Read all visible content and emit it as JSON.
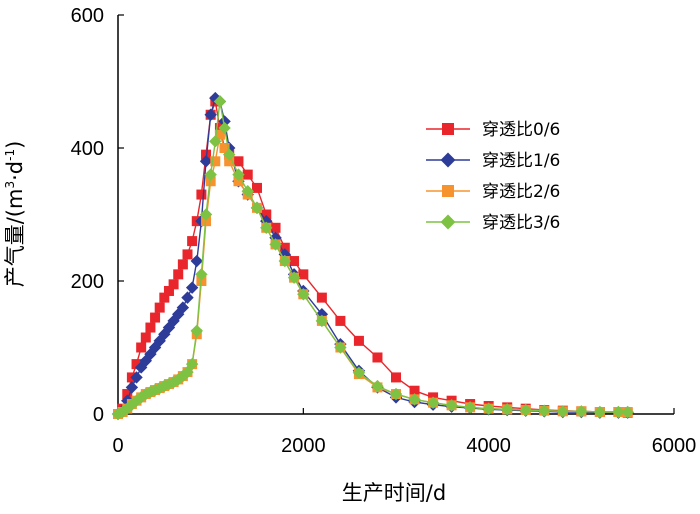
{
  "chart_data": {
    "type": "line",
    "title": "",
    "xlabel": "生产时间/d",
    "ylabel_prefix": "产气量/(m",
    "ylabel_sup1": "3",
    "ylabel_mid": "·d",
    "ylabel_sup2": "-1",
    "ylabel_suffix": ")",
    "xlim": [
      0,
      6000
    ],
    "ylim": [
      0,
      600
    ],
    "xticks": [
      "0",
      "2000",
      "4000",
      "6000"
    ],
    "yticks": [
      "0",
      "200",
      "400",
      "600"
    ],
    "legend_position": "right-middle",
    "series": [
      {
        "name": "穿透比0/6",
        "color": "#e8262b",
        "marker": "square",
        "points": [
          [
            0,
            0
          ],
          [
            50,
            8
          ],
          [
            100,
            30
          ],
          [
            150,
            55
          ],
          [
            200,
            75
          ],
          [
            250,
            100
          ],
          [
            300,
            115
          ],
          [
            350,
            130
          ],
          [
            400,
            145
          ],
          [
            450,
            160
          ],
          [
            500,
            175
          ],
          [
            550,
            185
          ],
          [
            600,
            195
          ],
          [
            650,
            210
          ],
          [
            700,
            225
          ],
          [
            750,
            240
          ],
          [
            800,
            260
          ],
          [
            850,
            290
          ],
          [
            900,
            330
          ],
          [
            950,
            390
          ],
          [
            1000,
            450
          ],
          [
            1050,
            470
          ],
          [
            1100,
            430
          ],
          [
            1150,
            400
          ],
          [
            1200,
            390
          ],
          [
            1300,
            380
          ],
          [
            1400,
            360
          ],
          [
            1500,
            340
          ],
          [
            1600,
            300
          ],
          [
            1700,
            280
          ],
          [
            1800,
            250
          ],
          [
            1900,
            230
          ],
          [
            2000,
            210
          ],
          [
            2200,
            175
          ],
          [
            2400,
            140
          ],
          [
            2600,
            110
          ],
          [
            2800,
            85
          ],
          [
            3000,
            55
          ],
          [
            3200,
            35
          ],
          [
            3400,
            25
          ],
          [
            3600,
            20
          ],
          [
            3800,
            15
          ],
          [
            4000,
            12
          ],
          [
            4200,
            10
          ],
          [
            4400,
            8
          ],
          [
            4600,
            6
          ],
          [
            4800,
            5
          ],
          [
            5000,
            4
          ],
          [
            5200,
            3
          ],
          [
            5400,
            3
          ],
          [
            5500,
            2
          ]
        ]
      },
      {
        "name": "穿透比1/6",
        "color": "#2e3c99",
        "marker": "diamond",
        "points": [
          [
            0,
            0
          ],
          [
            50,
            5
          ],
          [
            100,
            20
          ],
          [
            150,
            40
          ],
          [
            200,
            55
          ],
          [
            250,
            70
          ],
          [
            300,
            80
          ],
          [
            350,
            90
          ],
          [
            400,
            100
          ],
          [
            450,
            110
          ],
          [
            500,
            120
          ],
          [
            550,
            130
          ],
          [
            600,
            140
          ],
          [
            650,
            150
          ],
          [
            700,
            160
          ],
          [
            750,
            175
          ],
          [
            800,
            190
          ],
          [
            850,
            230
          ],
          [
            900,
            290
          ],
          [
            950,
            380
          ],
          [
            1000,
            450
          ],
          [
            1050,
            475
          ],
          [
            1100,
            470
          ],
          [
            1150,
            440
          ],
          [
            1200,
            400
          ],
          [
            1300,
            350
          ],
          [
            1400,
            330
          ],
          [
            1500,
            310
          ],
          [
            1600,
            290
          ],
          [
            1700,
            265
          ],
          [
            1800,
            240
          ],
          [
            1900,
            210
          ],
          [
            2000,
            185
          ],
          [
            2200,
            150
          ],
          [
            2400,
            105
          ],
          [
            2600,
            65
          ],
          [
            2800,
            40
          ],
          [
            3000,
            25
          ],
          [
            3200,
            18
          ],
          [
            3400,
            14
          ],
          [
            3600,
            11
          ],
          [
            3800,
            9
          ],
          [
            4000,
            7
          ],
          [
            4200,
            6
          ],
          [
            4400,
            5
          ],
          [
            4600,
            4
          ],
          [
            4800,
            3
          ],
          [
            5000,
            3
          ],
          [
            5200,
            2
          ],
          [
            5400,
            2
          ],
          [
            5500,
            2
          ]
        ]
      },
      {
        "name": "穿透比2/6",
        "color": "#f7932f",
        "marker": "square",
        "points": [
          [
            0,
            0
          ],
          [
            50,
            3
          ],
          [
            100,
            8
          ],
          [
            150,
            15
          ],
          [
            200,
            20
          ],
          [
            250,
            25
          ],
          [
            300,
            30
          ],
          [
            350,
            33
          ],
          [
            400,
            36
          ],
          [
            450,
            39
          ],
          [
            500,
            42
          ],
          [
            550,
            45
          ],
          [
            600,
            48
          ],
          [
            650,
            52
          ],
          [
            700,
            57
          ],
          [
            750,
            63
          ],
          [
            800,
            75
          ],
          [
            850,
            120
          ],
          [
            900,
            200
          ],
          [
            950,
            290
          ],
          [
            1000,
            350
          ],
          [
            1050,
            380
          ],
          [
            1100,
            420
          ],
          [
            1150,
            400
          ],
          [
            1200,
            380
          ],
          [
            1300,
            350
          ],
          [
            1400,
            330
          ],
          [
            1500,
            310
          ],
          [
            1600,
            280
          ],
          [
            1700,
            255
          ],
          [
            1800,
            230
          ],
          [
            1900,
            205
          ],
          [
            2000,
            180
          ],
          [
            2200,
            140
          ],
          [
            2400,
            100
          ],
          [
            2600,
            60
          ],
          [
            2800,
            40
          ],
          [
            3000,
            30
          ],
          [
            3200,
            22
          ],
          [
            3400,
            17
          ],
          [
            3600,
            13
          ],
          [
            3800,
            10
          ],
          [
            4000,
            8
          ],
          [
            4200,
            7
          ],
          [
            4400,
            6
          ],
          [
            4600,
            5
          ],
          [
            4800,
            4
          ],
          [
            5000,
            4
          ],
          [
            5200,
            3
          ],
          [
            5400,
            3
          ],
          [
            5500,
            3
          ]
        ]
      },
      {
        "name": "穿透比3/6",
        "color": "#7dc242",
        "marker": "diamond",
        "points": [
          [
            0,
            0
          ],
          [
            50,
            3
          ],
          [
            100,
            8
          ],
          [
            150,
            14
          ],
          [
            200,
            20
          ],
          [
            250,
            25
          ],
          [
            300,
            30
          ],
          [
            350,
            33
          ],
          [
            400,
            36
          ],
          [
            450,
            39
          ],
          [
            500,
            42
          ],
          [
            550,
            45
          ],
          [
            600,
            48
          ],
          [
            650,
            52
          ],
          [
            700,
            57
          ],
          [
            750,
            63
          ],
          [
            800,
            75
          ],
          [
            850,
            125
          ],
          [
            900,
            210
          ],
          [
            950,
            300
          ],
          [
            1000,
            360
          ],
          [
            1050,
            410
          ],
          [
            1100,
            470
          ],
          [
            1150,
            430
          ],
          [
            1200,
            390
          ],
          [
            1300,
            360
          ],
          [
            1400,
            335
          ],
          [
            1500,
            310
          ],
          [
            1600,
            280
          ],
          [
            1700,
            255
          ],
          [
            1800,
            230
          ],
          [
            1900,
            205
          ],
          [
            2000,
            180
          ],
          [
            2200,
            140
          ],
          [
            2400,
            100
          ],
          [
            2600,
            62
          ],
          [
            2800,
            42
          ],
          [
            3000,
            30
          ],
          [
            3200,
            22
          ],
          [
            3400,
            17
          ],
          [
            3600,
            13
          ],
          [
            3800,
            10
          ],
          [
            4000,
            8
          ],
          [
            4200,
            7
          ],
          [
            4400,
            6
          ],
          [
            4600,
            5
          ],
          [
            4800,
            4
          ],
          [
            5000,
            4
          ],
          [
            5200,
            3
          ],
          [
            5400,
            3
          ],
          [
            5500,
            3
          ]
        ]
      }
    ]
  }
}
